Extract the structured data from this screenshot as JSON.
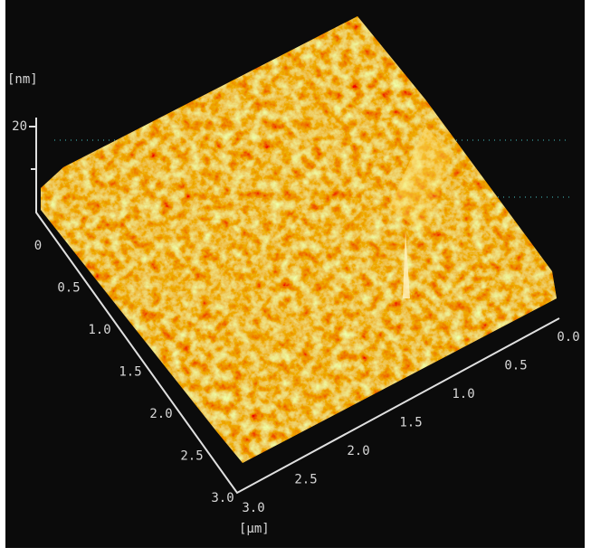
{
  "z_axis": {
    "unit": "[nm]",
    "ticks": [
      "20"
    ]
  },
  "left_axis": {
    "ticks": [
      "0",
      "0.5",
      "1.0",
      "1.5",
      "2.0",
      "2.5",
      "3.0"
    ]
  },
  "right_axis": {
    "ticks": [
      "0.0",
      "0.5",
      "1.0",
      "1.5",
      "2.0",
      "2.5",
      "3.0"
    ],
    "unit": "[μm]"
  }
}
